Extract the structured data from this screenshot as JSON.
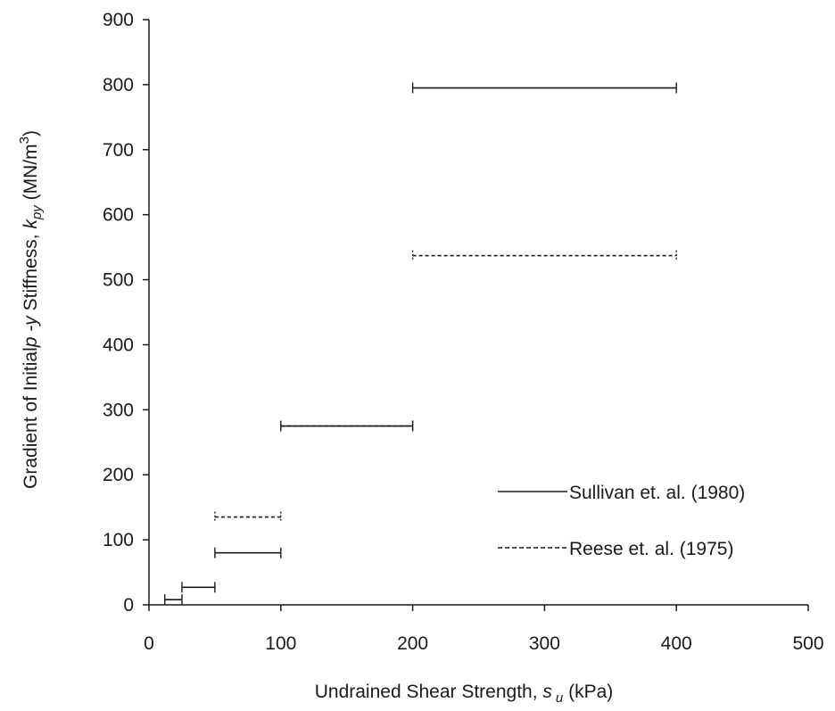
{
  "chart_data": {
    "type": "scatter",
    "title": "",
    "xlabel": {
      "prefix": "Undrained Shear Strength, ",
      "symbol": "s",
      "subscript": "u",
      "suffix": " (kPa)"
    },
    "ylabel": {
      "prefix": "Gradient of Initial",
      "symbol": "p -y",
      "middle": " Stiffness, ",
      "k_symbol": "k",
      "k_subscript": "py",
      "unit_start": " (MN/m",
      "unit_sup": "3",
      "unit_end": ")"
    },
    "xlim": [
      0,
      500
    ],
    "ylim": [
      0,
      900
    ],
    "xticks": [
      "0",
      "100",
      "200",
      "300",
      "400",
      "500"
    ],
    "yticks": [
      "0",
      "100",
      "200",
      "300",
      "400",
      "500",
      "600",
      "700",
      "800",
      "900"
    ],
    "grid": false,
    "legend_position": "lower-right",
    "series": [
      {
        "name": "Sullivan et. al. (1980)",
        "style": "solid",
        "segments": [
          {
            "x": [
              12,
              25
            ],
            "y": 8
          },
          {
            "x": [
              25,
              50
            ],
            "y": 27
          },
          {
            "x": [
              50,
              100
            ],
            "y": 80
          },
          {
            "x": [
              100,
              200
            ],
            "y": 275
          },
          {
            "x": [
              200,
              400
            ],
            "y": 795
          }
        ]
      },
      {
        "name": "Reese et. al. (1975)",
        "style": "dashed",
        "segments": [
          {
            "x": [
              50,
              100
            ],
            "y": 135
          },
          {
            "x": [
              100,
              200
            ],
            "y": 275
          },
          {
            "x": [
              200,
              400
            ],
            "y": 537
          }
        ]
      }
    ]
  }
}
